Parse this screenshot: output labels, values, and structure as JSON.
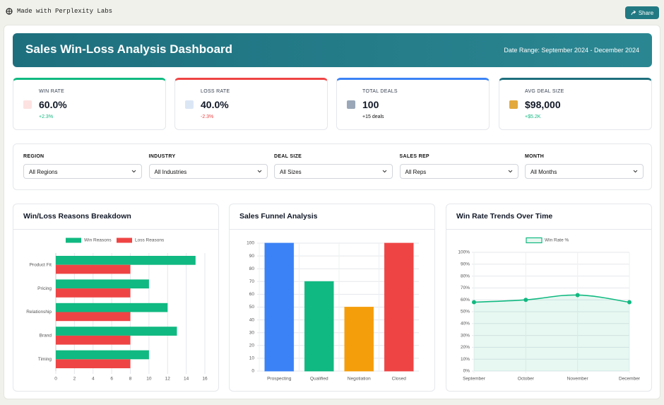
{
  "top_bar": {
    "brand": "Made with Perplexity Labs",
    "share": "Share"
  },
  "header": {
    "title": "Sales Win-Loss Analysis Dashboard",
    "date_label": "Date Range:",
    "date_value": "September 2024 - December 2024"
  },
  "kpis": [
    {
      "label": "WIN RATE",
      "value": "60.0%",
      "change": "+2.3%"
    },
    {
      "label": "LOSS RATE",
      "value": "40.0%",
      "change": "-2.3%"
    },
    {
      "label": "TOTAL DEALS",
      "value": "100",
      "change": "+15 deals"
    },
    {
      "label": "AVG DEAL SIZE",
      "value": "$98,000",
      "change": "+$5.2K"
    }
  ],
  "filters": [
    {
      "label": "REGION",
      "value": "All Regions"
    },
    {
      "label": "INDUSTRY",
      "value": "All Industries"
    },
    {
      "label": "DEAL SIZE",
      "value": "All Sizes"
    },
    {
      "label": "SALES REP",
      "value": "All Reps"
    },
    {
      "label": "MONTH",
      "value": "All Months"
    }
  ],
  "chart_data": [
    {
      "type": "bar",
      "orientation": "horizontal",
      "title": "Win/Loss Reasons Breakdown",
      "categories": [
        "Product Fit",
        "Pricing",
        "Relationship",
        "Brand",
        "Timing"
      ],
      "series": [
        {
          "name": "Win Reasons",
          "color": "#10b981",
          "values": [
            15,
            10,
            12,
            13,
            10
          ]
        },
        {
          "name": "Loss Reasons",
          "color": "#ef4444",
          "values": [
            8,
            8,
            8,
            8,
            8
          ]
        }
      ],
      "xlim": [
        0,
        16
      ],
      "xticks": [
        0,
        2,
        4,
        6,
        8,
        10,
        12,
        14,
        16
      ],
      "grid": true
    },
    {
      "type": "bar",
      "orientation": "vertical",
      "title": "Sales Funnel Analysis",
      "categories": [
        "Prospecting",
        "Qualified",
        "Negotiation",
        "Closed"
      ],
      "values": [
        100,
        70,
        50,
        100
      ],
      "colors": [
        "#3b82f6",
        "#10b981",
        "#f59e0b",
        "#ef4444"
      ],
      "ylim": [
        0,
        100
      ],
      "yticks": [
        0,
        10,
        20,
        30,
        40,
        50,
        60,
        70,
        80,
        90,
        100
      ],
      "grid": true
    },
    {
      "type": "line",
      "title": "Win Rate Trends Over Time",
      "categories": [
        "September",
        "October",
        "November",
        "December"
      ],
      "series": [
        {
          "name": "Win Rate %",
          "color": "#10b981",
          "values": [
            58,
            60,
            64,
            58
          ]
        }
      ],
      "ylim": [
        0,
        100
      ],
      "yticks": [
        {
          "value": 0,
          "label": "0%"
        },
        {
          "value": 10,
          "label": "10%"
        },
        {
          "value": 20,
          "label": "20%"
        },
        {
          "value": 30,
          "label": "30%"
        },
        {
          "value": 40,
          "label": "40%"
        },
        {
          "value": 50,
          "label": "50%"
        },
        {
          "value": 60,
          "label": "60%"
        },
        {
          "value": 70,
          "label": "70%"
        },
        {
          "value": 80,
          "label": "80%"
        },
        {
          "value": 90,
          "label": "90%"
        },
        {
          "value": 100,
          "label": "100%"
        }
      ],
      "grid": true,
      "fill": true
    }
  ]
}
